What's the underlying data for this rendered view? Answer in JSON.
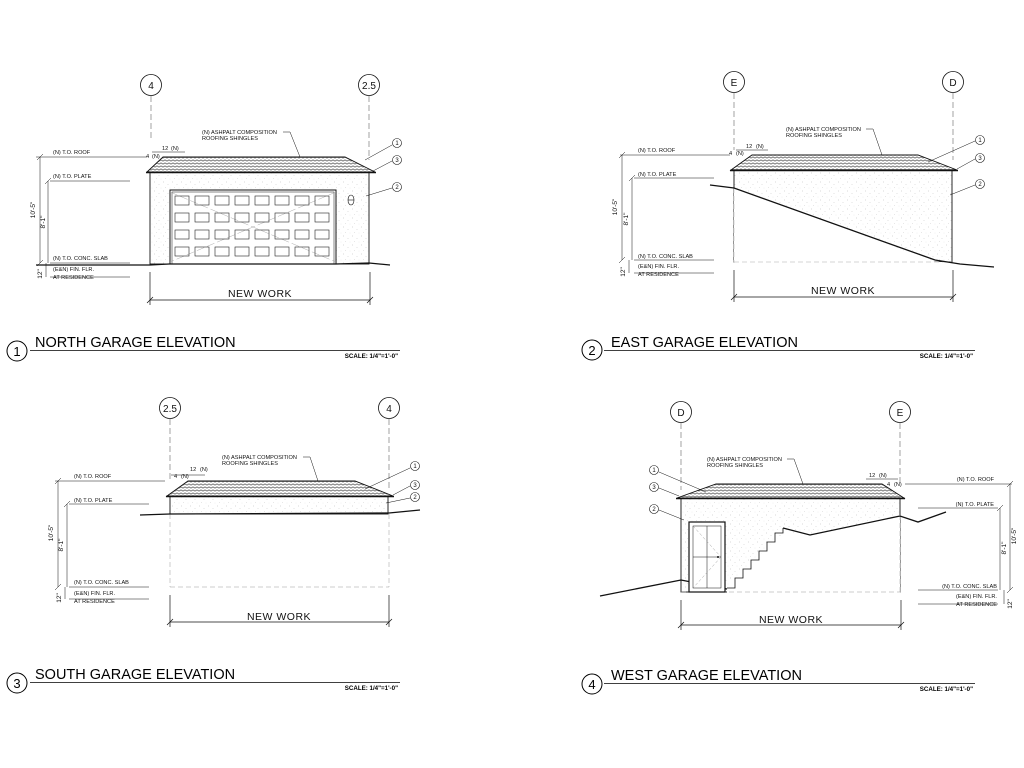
{
  "elevations": {
    "north": {
      "number": "1",
      "title": "NORTH GARAGE ELEVATION",
      "scale": "SCALE: 1/4\"=1'-0\"",
      "grid_left": "4",
      "grid_right": "2.5",
      "new_work": "NEW WORK",
      "roofing_line1": "(N) ASHPALT COMPOSITION",
      "roofing_line2": "ROOFING SHINGLES",
      "pitch_rise": "12",
      "pitch_rise_note": "(N)",
      "pitch_run": "4",
      "pitch_run_note": "(N)",
      "to_roof": "(N) T.O. ROOF",
      "to_plate": "(N) T.O. PLATE",
      "to_slab": "(N) T.O. CONC. SLAB",
      "fin_flr_line1": "(E&N) FIN. FLR.",
      "fin_flr_line2": "AT RESIDENCE",
      "dim_total": "10'-5\"",
      "dim_wall": "8'-1\"",
      "dim_slab": "12\"",
      "callout_1": "1",
      "callout_2": "2",
      "callout_3": "3"
    },
    "east": {
      "number": "2",
      "title": "EAST GARAGE ELEVATION",
      "scale": "SCALE: 1/4\"=1'-0\"",
      "grid_left": "E",
      "grid_right": "D",
      "new_work": "NEW WORK",
      "roofing_line1": "(N) ASHPALT COMPOSITION",
      "roofing_line2": "ROOFING SHINGLES",
      "pitch_rise": "12",
      "pitch_rise_note": "(N)",
      "pitch_run": "4",
      "pitch_run_note": "(N)",
      "to_roof": "(N) T.O. ROOF",
      "to_plate": "(N) T.O. PLATE",
      "to_slab": "(N) T.O. CONC. SLAB",
      "fin_flr_line1": "(E&N) FIN. FLR.",
      "fin_flr_line2": "AT RESIDENCE",
      "dim_total": "10'-5\"",
      "dim_wall": "8'-1\"",
      "dim_slab": "12\"",
      "callout_1": "1",
      "callout_2": "3",
      "callout_3": "2"
    },
    "south": {
      "number": "3",
      "title": "SOUTH GARAGE ELEVATION",
      "scale": "SCALE: 1/4\"=1'-0\"",
      "grid_left": "2.5",
      "grid_right": "4",
      "new_work": "NEW WORK",
      "roofing_line1": "(N) ASHPALT COMPOSITION",
      "roofing_line2": "ROOFING SHINGLES",
      "pitch_rise": "12",
      "pitch_rise_note": "(N)",
      "pitch_run": "4",
      "pitch_run_note": "(N)",
      "to_roof": "(N) T.O. ROOF",
      "to_plate": "(N) T.O. PLATE",
      "to_slab": "(N) T.O. CONC. SLAB",
      "fin_flr_line1": "(E&N) FIN. FLR.",
      "fin_flr_line2": "AT RESIDENCE",
      "dim_total": "10'-5\"",
      "dim_wall": "8'-1\"",
      "dim_slab": "12\"",
      "callout_1": "1",
      "callout_2": "3",
      "callout_3": "2"
    },
    "west": {
      "number": "4",
      "title": "WEST GARAGE ELEVATION",
      "scale": "SCALE: 1/4\"=1'-0\"",
      "grid_left": "D",
      "grid_right": "E",
      "new_work": "NEW WORK",
      "roofing_line1": "(N) ASHPALT COMPOSITION",
      "roofing_line2": "ROOFING SHINGLES",
      "pitch_rise": "12",
      "pitch_rise_note": "(N)",
      "pitch_run": "4",
      "pitch_run_note": "(N)",
      "to_roof": "(N) T.O. ROOF",
      "to_plate": "(N) T.O. PLATE",
      "to_slab": "(N) T.O. CONC. SLAB",
      "fin_flr_line1": "(E&N) FIN. FLR.",
      "fin_flr_line2": "AT RESIDENCE",
      "dim_total": "10'-5\"",
      "dim_wall": "8'-1\"",
      "dim_slab": "12\"",
      "callout_1": "1",
      "callout_2": "3",
      "callout_3": "2"
    }
  }
}
